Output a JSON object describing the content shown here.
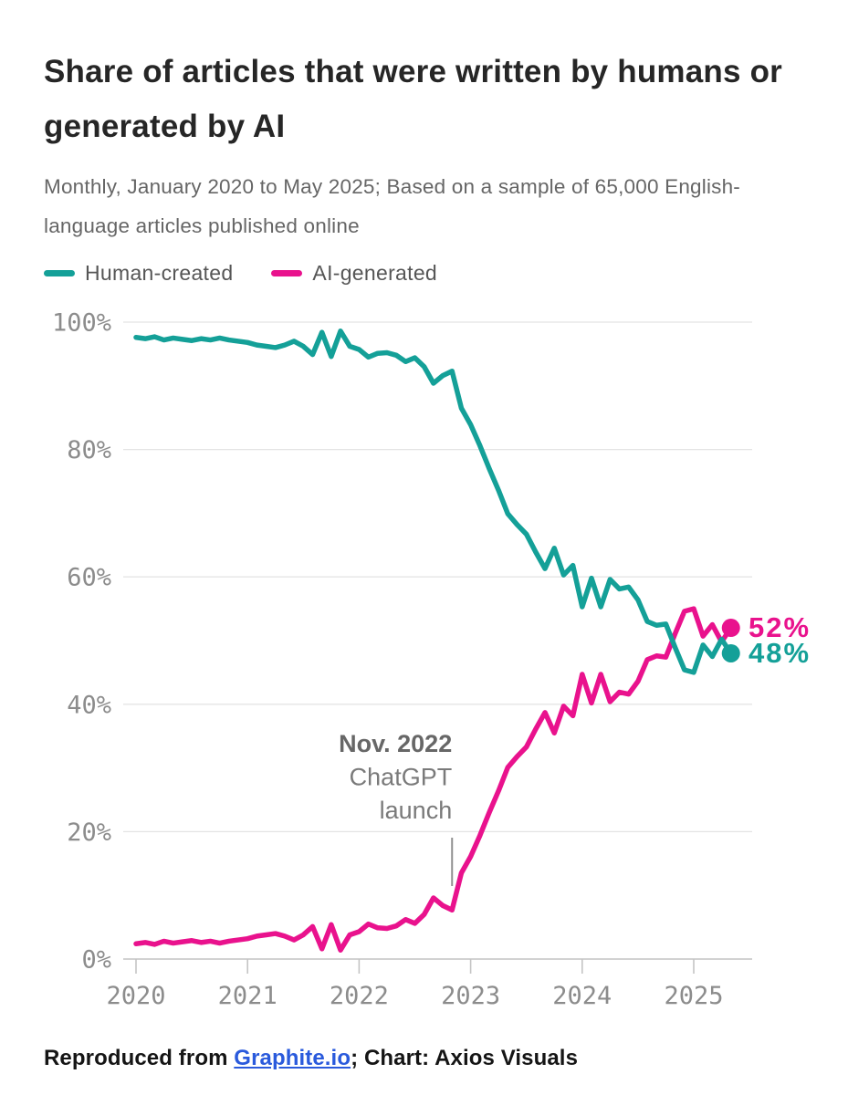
{
  "header": {
    "title": "Share of articles that were written by humans or generated by AI",
    "subtitle": "Monthly, January 2020 to May 2025; Based on a sample of 65,000 English-language articles published online"
  },
  "legend": [
    {
      "label": "Human-created",
      "color": "#14a098"
    },
    {
      "label": "AI-generated",
      "color": "#e9128d"
    }
  ],
  "chart_data": {
    "type": "line",
    "x_range": {
      "start": "2020-01",
      "end": "2025-05",
      "frequency": "monthly",
      "n_points": 65
    },
    "xticks": [
      "2020",
      "2021",
      "2022",
      "2023",
      "2024",
      "2025"
    ],
    "yticks": [
      "0%",
      "20%",
      "40%",
      "60%",
      "80%",
      "100%"
    ],
    "ylim": [
      0,
      100
    ],
    "grid": "horizontal",
    "legend_position": "top-left",
    "series": [
      {
        "name": "Human-created",
        "color": "#14a098",
        "end_label": "48%",
        "values": [
          97.6,
          97.4,
          97.7,
          97.2,
          97.5,
          97.3,
          97.1,
          97.4,
          97.2,
          97.5,
          97.2,
          97.0,
          96.8,
          96.4,
          96.2,
          96.0,
          96.4,
          97.0,
          96.2,
          94.9,
          98.4,
          94.6,
          98.6,
          96.2,
          95.7,
          94.5,
          95.1,
          95.2,
          94.8,
          93.8,
          94.4,
          93.0,
          90.4,
          91.6,
          92.3,
          86.5,
          83.9,
          80.6,
          77.0,
          73.6,
          69.9,
          68.2,
          66.7,
          63.9,
          61.3,
          64.5,
          60.3,
          61.8,
          55.3,
          59.8,
          55.3,
          59.6,
          58.1,
          58.4,
          56.4,
          53.0,
          52.4,
          52.6,
          48.9,
          45.4,
          45.0,
          49.3,
          47.5,
          50.2,
          48.0
        ]
      },
      {
        "name": "AI-generated",
        "color": "#e9128d",
        "end_label": "52%",
        "values": [
          2.4,
          2.6,
          2.3,
          2.8,
          2.5,
          2.7,
          2.9,
          2.6,
          2.8,
          2.5,
          2.8,
          3.0,
          3.2,
          3.6,
          3.8,
          4.0,
          3.6,
          3.0,
          3.8,
          5.1,
          1.6,
          5.4,
          1.4,
          3.8,
          4.3,
          5.5,
          4.9,
          4.8,
          5.2,
          6.2,
          5.6,
          7.0,
          9.6,
          8.4,
          7.7,
          13.5,
          16.1,
          19.4,
          23.0,
          26.4,
          30.1,
          31.8,
          33.3,
          36.1,
          38.7,
          35.5,
          39.7,
          38.2,
          44.7,
          40.2,
          44.7,
          40.4,
          41.9,
          41.6,
          43.6,
          47.0,
          47.6,
          47.4,
          51.1,
          54.6,
          55.0,
          50.7,
          52.5,
          49.8,
          52.0
        ]
      }
    ],
    "annotation": {
      "lines": [
        "Nov. 2022",
        "ChatGPT",
        "launch"
      ],
      "x": "2022-11",
      "month_index": 34
    }
  },
  "footer": {
    "prefix": "Reproduced from ",
    "link_text": "Graphite.io",
    "suffix": "; Chart: Axios Visuals"
  }
}
